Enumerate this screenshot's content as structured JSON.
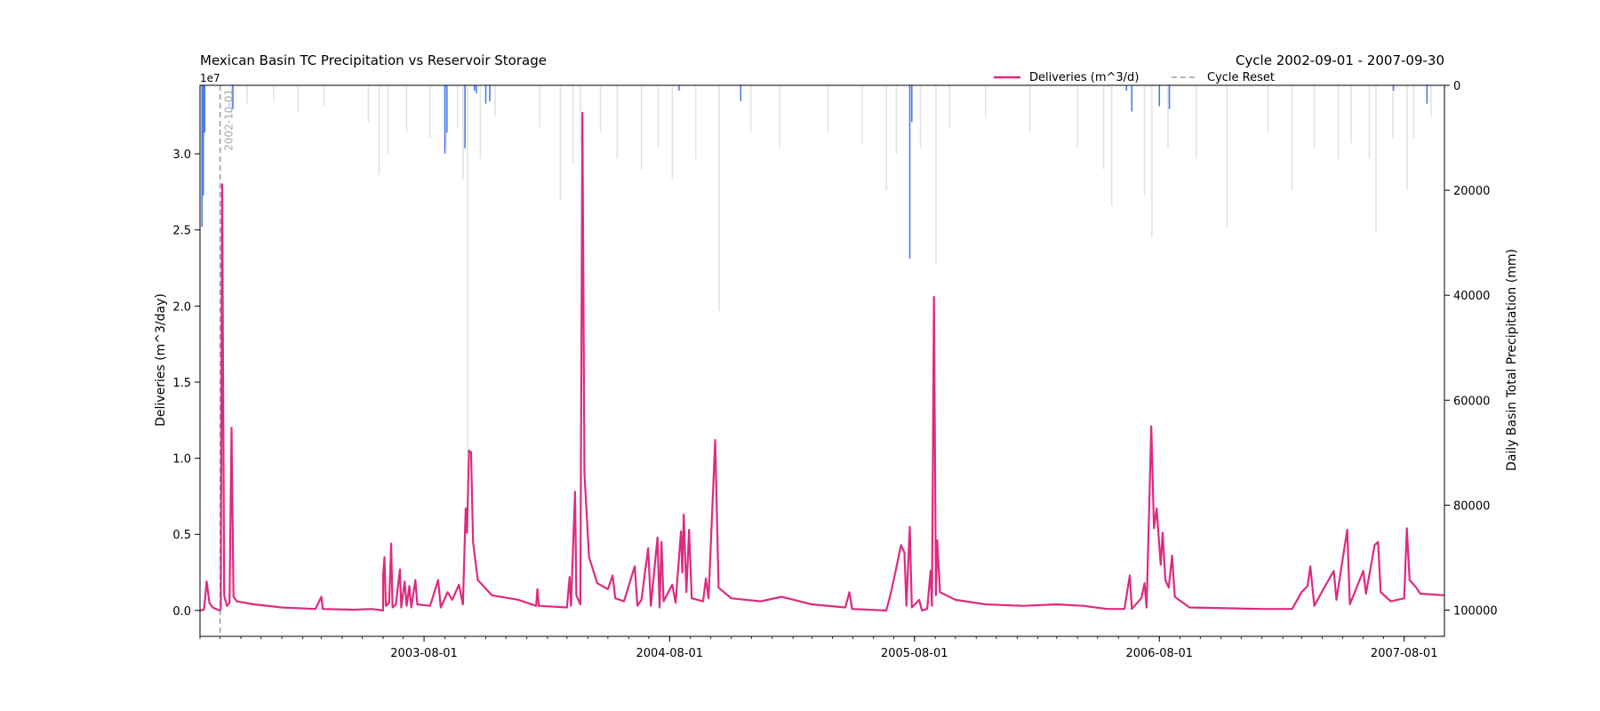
{
  "chart_data": {
    "type": "line",
    "title": "Mexican Basin TC Precipitation vs Reservoir Storage",
    "subtitle": "Cycle 2002-09-01 - 2007-09-30",
    "x_range": [
      "2002-09-01",
      "2007-09-30"
    ],
    "x_ticks": [
      "2003-08-01",
      "2004-08-01",
      "2005-08-01",
      "2006-08-01",
      "2007-08-01"
    ],
    "y_left": {
      "label": "Deliveries (m^3/day)",
      "offset_label": "1e7",
      "range": [
        -1700000,
        34500000
      ],
      "tick_values": [
        0,
        5000000,
        10000000,
        15000000,
        20000000,
        25000000,
        30000000
      ],
      "tick_labels": [
        "0.0",
        "0.5",
        "1.0",
        "1.5",
        "2.0",
        "2.5",
        "3.0"
      ]
    },
    "y_right": {
      "label": "Daily Basin Total Precipitation (mm)",
      "inverted": true,
      "range": [
        0,
        105000
      ],
      "ticks": [
        0,
        20000,
        40000,
        60000,
        80000,
        100000
      ]
    },
    "legend": {
      "position": "top-center",
      "entries": [
        {
          "label": "Deliveries (m^3/d)",
          "color": "#de2a7f",
          "style": "solid"
        },
        {
          "label": "Cycle Reset",
          "color": "#a0a0a0",
          "style": "dashed"
        }
      ]
    },
    "annotations": [
      {
        "text": "2002-10-01",
        "x": "2002-10-01"
      }
    ],
    "series": [
      {
        "name": "Deliveries (m^3/d)",
        "color": "#de2a7f",
        "points": [
          [
            "2002-09-01",
            0
          ],
          [
            "2002-09-07",
            60000
          ],
          [
            "2002-09-11",
            1900000
          ],
          [
            "2002-09-15",
            500000
          ],
          [
            "2002-09-20",
            200000
          ],
          [
            "2002-09-25",
            100000
          ],
          [
            "2002-09-30",
            0
          ],
          [
            "2002-10-02",
            100000
          ],
          [
            "2002-10-04",
            28000000
          ],
          [
            "2002-10-07",
            1000000
          ],
          [
            "2002-10-11",
            300000
          ],
          [
            "2002-10-15",
            500000
          ],
          [
            "2002-10-18",
            12000000
          ],
          [
            "2002-10-21",
            900000
          ],
          [
            "2002-10-26",
            600000
          ],
          [
            "2002-11-20",
            400000
          ],
          [
            "2003-01-01",
            200000
          ],
          [
            "2003-02-20",
            100000
          ],
          [
            "2003-03-01",
            900000
          ],
          [
            "2003-03-03",
            100000
          ],
          [
            "2003-04-20",
            50000
          ],
          [
            "2003-05-15",
            100000
          ],
          [
            "2003-06-01",
            0
          ],
          [
            "2003-06-01",
            2300000
          ],
          [
            "2003-06-03",
            3500000
          ],
          [
            "2003-06-05",
            300000
          ],
          [
            "2003-06-10",
            500000
          ],
          [
            "2003-06-13",
            4400000
          ],
          [
            "2003-06-15",
            200000
          ],
          [
            "2003-06-20",
            400000
          ],
          [
            "2003-06-26",
            2700000
          ],
          [
            "2003-06-28",
            200000
          ],
          [
            "2003-07-03",
            1900000
          ],
          [
            "2003-07-06",
            300000
          ],
          [
            "2003-07-10",
            1600000
          ],
          [
            "2003-07-13",
            200000
          ],
          [
            "2003-07-19",
            2000000
          ],
          [
            "2003-07-22",
            400000
          ],
          [
            "2003-08-10",
            300000
          ],
          [
            "2003-08-22",
            2000000
          ],
          [
            "2003-08-26",
            200000
          ],
          [
            "2003-09-05",
            1200000
          ],
          [
            "2003-09-12",
            700000
          ],
          [
            "2003-09-22",
            1700000
          ],
          [
            "2003-09-28",
            400000
          ],
          [
            "2003-10-02",
            6700000
          ],
          [
            "2003-10-04",
            5100000
          ],
          [
            "2003-10-07",
            10500000
          ],
          [
            "2003-10-10",
            10400000
          ],
          [
            "2003-10-13",
            4500000
          ],
          [
            "2003-10-20",
            2000000
          ],
          [
            "2003-11-10",
            1000000
          ],
          [
            "2003-12-20",
            700000
          ],
          [
            "2004-01-15",
            300000
          ],
          [
            "2004-01-17",
            1400000
          ],
          [
            "2004-01-19",
            300000
          ],
          [
            "2004-03-01",
            200000
          ],
          [
            "2004-03-05",
            2200000
          ],
          [
            "2004-03-07",
            300000
          ],
          [
            "2004-03-13",
            7800000
          ],
          [
            "2004-03-15",
            1000000
          ],
          [
            "2004-03-21",
            400000
          ],
          [
            "2004-03-24",
            32700000
          ],
          [
            "2004-03-27",
            9000000
          ],
          [
            "2004-04-03",
            3500000
          ],
          [
            "2004-04-15",
            1800000
          ],
          [
            "2004-05-01",
            1400000
          ],
          [
            "2004-05-08",
            2300000
          ],
          [
            "2004-05-12",
            800000
          ],
          [
            "2004-05-25",
            600000
          ],
          [
            "2004-06-10",
            2900000
          ],
          [
            "2004-06-14",
            300000
          ],
          [
            "2004-06-20",
            700000
          ],
          [
            "2004-06-30",
            4100000
          ],
          [
            "2004-07-04",
            300000
          ],
          [
            "2004-07-14",
            4800000
          ],
          [
            "2004-07-17",
            200000
          ],
          [
            "2004-07-20",
            4500000
          ],
          [
            "2004-07-23",
            600000
          ],
          [
            "2004-08-05",
            1700000
          ],
          [
            "2004-08-10",
            500000
          ],
          [
            "2004-08-18",
            5200000
          ],
          [
            "2004-08-20",
            2500000
          ],
          [
            "2004-08-22",
            6300000
          ],
          [
            "2004-08-26",
            1200000
          ],
          [
            "2004-08-30",
            5300000
          ],
          [
            "2004-09-03",
            800000
          ],
          [
            "2004-09-20",
            600000
          ],
          [
            "2004-09-24",
            2100000
          ],
          [
            "2004-09-28",
            800000
          ],
          [
            "2004-10-08",
            11200000
          ],
          [
            "2004-10-13",
            1500000
          ],
          [
            "2004-11-01",
            800000
          ],
          [
            "2004-12-15",
            600000
          ],
          [
            "2005-01-15",
            900000
          ],
          [
            "2005-03-01",
            400000
          ],
          [
            "2005-04-20",
            200000
          ],
          [
            "2005-04-26",
            1200000
          ],
          [
            "2005-04-30",
            100000
          ],
          [
            "2005-06-20",
            0
          ],
          [
            "2005-06-26",
            1000000
          ],
          [
            "2005-07-04",
            2600000
          ],
          [
            "2005-07-12",
            4300000
          ],
          [
            "2005-07-17",
            3800000
          ],
          [
            "2005-07-20",
            300000
          ],
          [
            "2005-07-25",
            5500000
          ],
          [
            "2005-07-28",
            200000
          ],
          [
            "2005-08-08",
            700000
          ],
          [
            "2005-08-12",
            0
          ],
          [
            "2005-08-20",
            100000
          ],
          [
            "2005-08-25",
            2600000
          ],
          [
            "2005-08-27",
            300000
          ],
          [
            "2005-08-30",
            20600000
          ],
          [
            "2005-09-02",
            1000000
          ],
          [
            "2005-09-04",
            4600000
          ],
          [
            "2005-09-08",
            1200000
          ],
          [
            "2005-10-01",
            700000
          ],
          [
            "2005-11-15",
            400000
          ],
          [
            "2006-01-10",
            300000
          ],
          [
            "2006-03-01",
            400000
          ],
          [
            "2006-04-10",
            300000
          ],
          [
            "2006-05-15",
            100000
          ],
          [
            "2006-06-10",
            100000
          ],
          [
            "2006-06-18",
            2300000
          ],
          [
            "2006-06-21",
            100000
          ],
          [
            "2006-07-05",
            800000
          ],
          [
            "2006-07-10",
            1800000
          ],
          [
            "2006-07-13",
            200000
          ],
          [
            "2006-07-20",
            12100000
          ],
          [
            "2006-07-24",
            5400000
          ],
          [
            "2006-07-28",
            6700000
          ],
          [
            "2006-08-03",
            3000000
          ],
          [
            "2006-08-06",
            5100000
          ],
          [
            "2006-08-10",
            2000000
          ],
          [
            "2006-08-15",
            1500000
          ],
          [
            "2006-08-20",
            3600000
          ],
          [
            "2006-08-24",
            900000
          ],
          [
            "2006-09-15",
            200000
          ],
          [
            "2007-01-01",
            100000
          ],
          [
            "2007-02-15",
            100000
          ],
          [
            "2007-03-01",
            1200000
          ],
          [
            "2007-03-10",
            1600000
          ],
          [
            "2007-03-14",
            2900000
          ],
          [
            "2007-03-20",
            300000
          ],
          [
            "2007-04-05",
            1600000
          ],
          [
            "2007-04-18",
            2600000
          ],
          [
            "2007-04-22",
            700000
          ],
          [
            "2007-05-08",
            5300000
          ],
          [
            "2007-05-12",
            400000
          ],
          [
            "2007-06-01",
            2600000
          ],
          [
            "2007-06-05",
            1100000
          ],
          [
            "2007-06-18",
            4300000
          ],
          [
            "2007-06-23",
            4500000
          ],
          [
            "2007-06-27",
            1200000
          ],
          [
            "2007-07-12",
            600000
          ],
          [
            "2007-08-01",
            800000
          ],
          [
            "2007-08-05",
            5400000
          ],
          [
            "2007-08-09",
            2000000
          ],
          [
            "2007-08-19",
            1500000
          ],
          [
            "2007-08-25",
            1100000
          ],
          [
            "2007-09-30",
            1000000
          ]
        ]
      },
      {
        "name": "",
        "color": "#e3e3e3",
        "type": "bar",
        "axis": "right",
        "points": [
          [
            "2002-10-18",
            6000
          ],
          [
            "2002-11-10",
            3500
          ],
          [
            "2002-12-20",
            3000
          ],
          [
            "2003-01-25",
            5000
          ],
          [
            "2003-03-05",
            4000
          ],
          [
            "2003-05-10",
            7000
          ],
          [
            "2003-05-26",
            17000
          ],
          [
            "2003-06-08",
            13000
          ],
          [
            "2003-07-06",
            9000
          ],
          [
            "2003-08-10",
            10000
          ],
          [
            "2003-09-03",
            12000
          ],
          [
            "2003-09-20",
            8000
          ],
          [
            "2003-09-28",
            18000
          ],
          [
            "2003-10-05",
            70000
          ],
          [
            "2003-10-24",
            14000
          ],
          [
            "2003-11-15",
            6000
          ],
          [
            "2004-01-20",
            8000
          ],
          [
            "2004-02-20",
            22000
          ],
          [
            "2004-03-10",
            15000
          ],
          [
            "2004-03-21",
            11000
          ],
          [
            "2004-04-20",
            9000
          ],
          [
            "2004-05-15",
            14000
          ],
          [
            "2004-06-20",
            16000
          ],
          [
            "2004-07-15",
            12000
          ],
          [
            "2004-08-05",
            18000
          ],
          [
            "2004-09-09",
            14000
          ],
          [
            "2004-10-14",
            43000
          ],
          [
            "2004-11-30",
            9000
          ],
          [
            "2005-01-12",
            12000
          ],
          [
            "2005-03-25",
            9000
          ],
          [
            "2005-05-15",
            11000
          ],
          [
            "2005-06-20",
            20000
          ],
          [
            "2005-07-05",
            13000
          ],
          [
            "2005-08-10",
            12000
          ],
          [
            "2005-09-02",
            34000
          ],
          [
            "2005-09-22",
            8000
          ],
          [
            "2005-11-15",
            6000
          ],
          [
            "2006-01-20",
            9000
          ],
          [
            "2006-04-01",
            12000
          ],
          [
            "2006-05-10",
            16000
          ],
          [
            "2006-05-22",
            23000
          ],
          [
            "2006-07-10",
            21000
          ],
          [
            "2006-07-21",
            29000
          ],
          [
            "2006-08-14",
            12000
          ],
          [
            "2006-09-25",
            14000
          ],
          [
            "2006-11-10",
            27000
          ],
          [
            "2007-01-10",
            9000
          ],
          [
            "2007-02-15",
            20000
          ],
          [
            "2007-03-20",
            12000
          ],
          [
            "2007-04-25",
            14000
          ],
          [
            "2007-05-14",
            11000
          ],
          [
            "2007-06-10",
            14000
          ],
          [
            "2007-06-20",
            28000
          ],
          [
            "2007-07-15",
            10000
          ],
          [
            "2007-08-05",
            20000
          ],
          [
            "2007-08-15",
            10000
          ],
          [
            "2007-09-10",
            6000
          ]
        ]
      },
      {
        "name": "",
        "color": "#4b7bec",
        "type": "bar",
        "axis": "right",
        "points": [
          [
            "2002-09-04",
            27000
          ],
          [
            "2002-09-06",
            21000
          ],
          [
            "2002-09-08",
            9000
          ],
          [
            "2002-10-20",
            4500
          ],
          [
            "2003-09-01",
            13000
          ],
          [
            "2003-09-04",
            9000
          ],
          [
            "2003-10-01",
            12000
          ],
          [
            "2003-10-15",
            1000
          ],
          [
            "2003-10-18",
            1500
          ],
          [
            "2003-11-01",
            3500
          ],
          [
            "2003-11-07",
            3000
          ],
          [
            "2004-08-15",
            1000
          ],
          [
            "2004-11-15",
            3000
          ],
          [
            "2005-07-25",
            33000
          ],
          [
            "2005-07-28",
            7000
          ],
          [
            "2006-06-13",
            1000
          ],
          [
            "2006-06-21",
            5000
          ],
          [
            "2006-08-01",
            4000
          ],
          [
            "2006-08-16",
            4500
          ],
          [
            "2007-07-16",
            1000
          ],
          [
            "2007-09-04",
            3500
          ]
        ]
      }
    ]
  }
}
